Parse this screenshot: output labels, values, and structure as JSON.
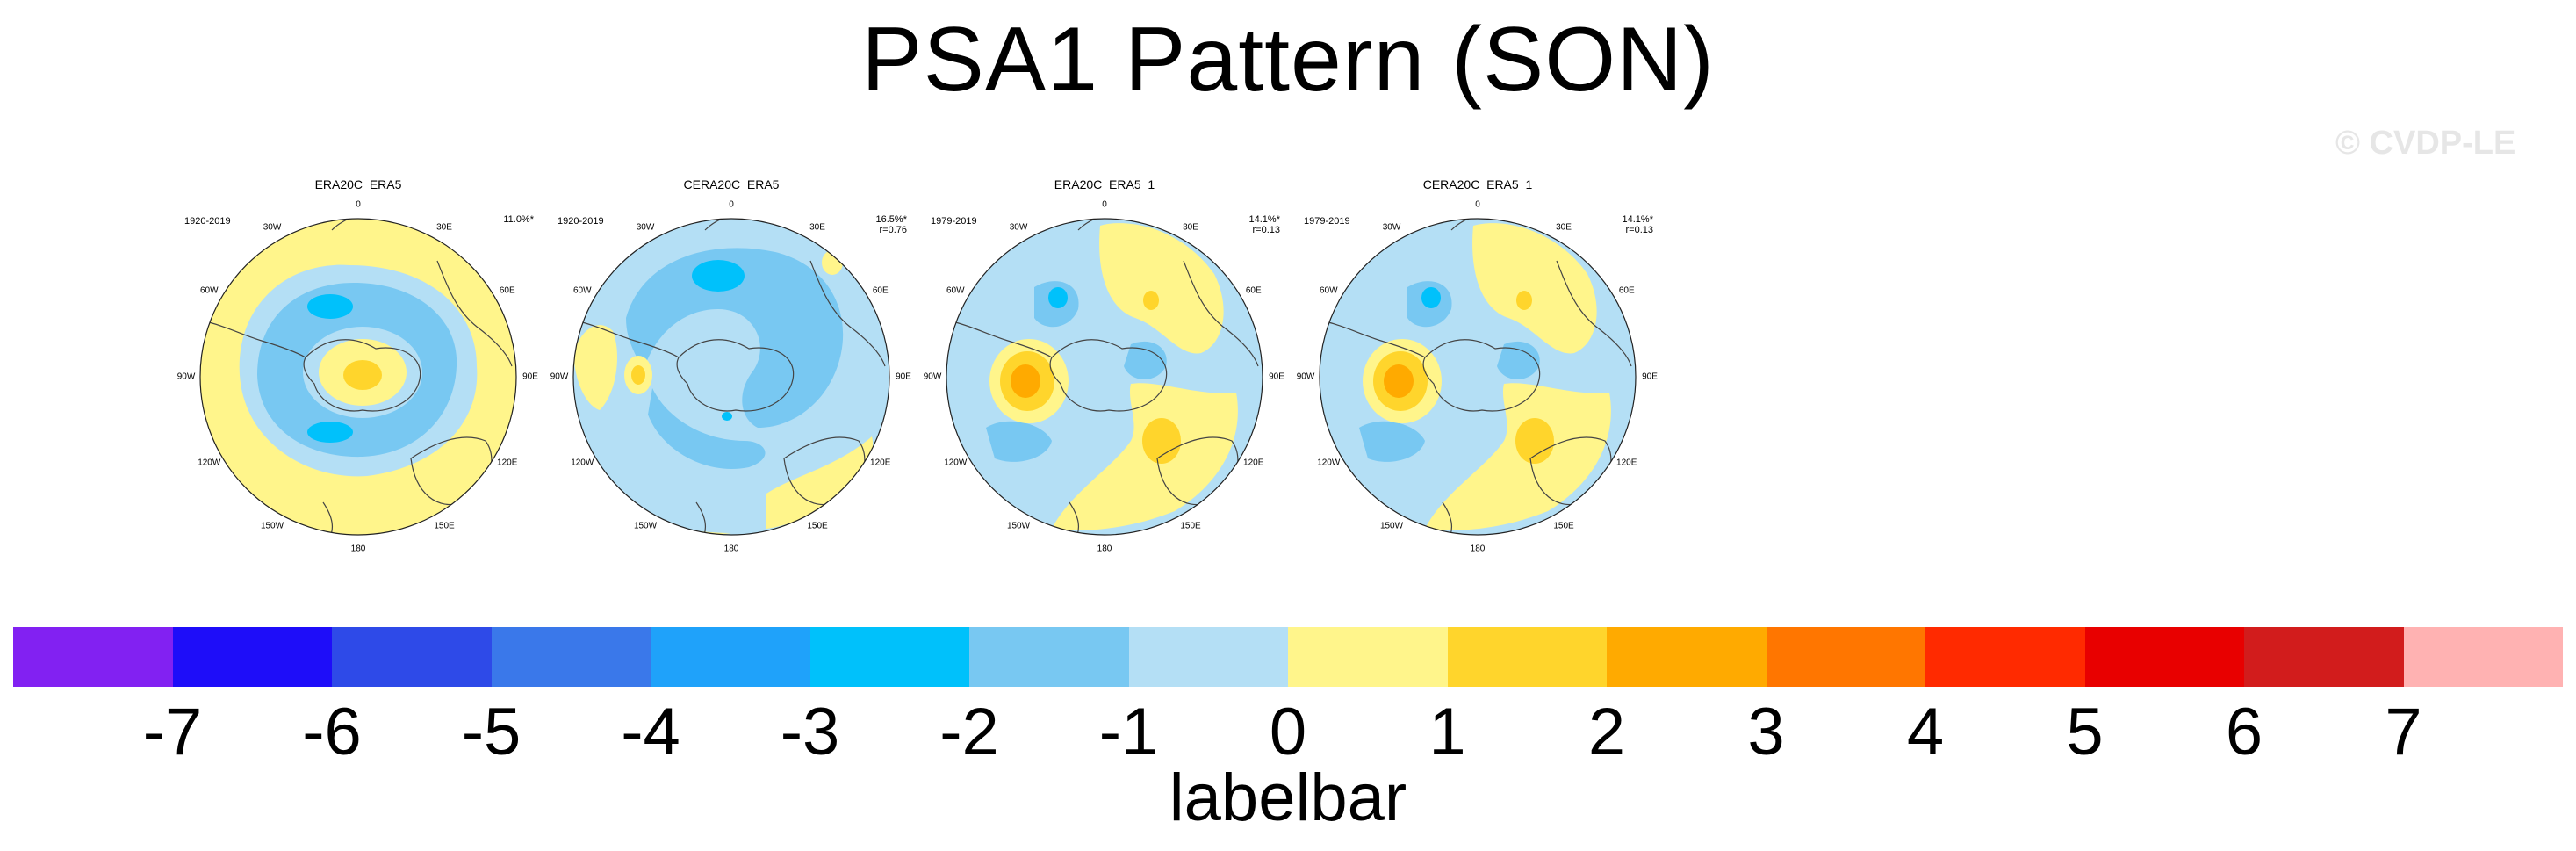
{
  "title": "PSA1 Pattern (SON)",
  "watermark": "© CVDP-LE",
  "panels": [
    {
      "title": "ERA20C_ERA5",
      "years": "1920-2019",
      "stat": "11.0%*",
      "pattern": 0
    },
    {
      "title": "CERA20C_ERA5",
      "years": "1920-2019",
      "stat": "16.5%*\nr=0.76",
      "pattern": 1
    },
    {
      "title": "ERA20C_ERA5_1",
      "years": "1979-2019",
      "stat": "14.1%*\nr=0.13",
      "pattern": 2
    },
    {
      "title": "CERA20C_ERA5_1",
      "years": "1979-2019",
      "stat": "14.1%*\nr=0.13",
      "pattern": 2
    }
  ],
  "longitude_labels": [
    "0",
    "30E",
    "60E",
    "90E",
    "120E",
    "150E",
    "180",
    "150W",
    "120W",
    "90W",
    "60W",
    "30W"
  ],
  "colorbar": {
    "colors": [
      "#8221f2",
      "#1e0df9",
      "#2e4ae8",
      "#3a78ea",
      "#1fa2fa",
      "#00c1fb",
      "#78c8f2",
      "#b4dff5",
      "#fff58b",
      "#ffd52c",
      "#ffaa00",
      "#ff7600",
      "#ff2a00",
      "#e80000",
      "#d21c1c",
      "#ffb2b2"
    ],
    "ticks": [
      "-7",
      "-6",
      "-5",
      "-4",
      "-3",
      "-2",
      "-1",
      "0",
      "1",
      "2",
      "3",
      "4",
      "5",
      "6",
      "7"
    ],
    "label": "labelbar"
  }
}
